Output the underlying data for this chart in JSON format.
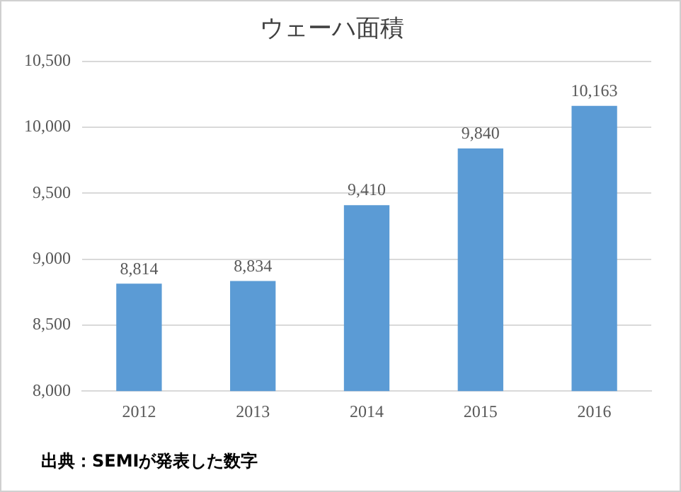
{
  "chart_data": {
    "type": "bar",
    "title": "ウェーハ面積",
    "categories": [
      "2012",
      "2013",
      "2014",
      "2015",
      "2016"
    ],
    "values": [
      8814,
      8834,
      9410,
      9840,
      10163
    ],
    "value_labels": [
      "8,814",
      "8,834",
      "9,410",
      "9,840",
      "10,163"
    ],
    "color": "#5b9bd5",
    "ylim": [
      8000,
      10500
    ],
    "yticks": [
      {
        "value": 8000,
        "label": "8,000"
      },
      {
        "value": 8500,
        "label": "8,500"
      },
      {
        "value": 9000,
        "label": "9,000"
      },
      {
        "value": 9500,
        "label": "9,500"
      },
      {
        "value": 10000,
        "label": "10,000"
      },
      {
        "value": 10500,
        "label": "10,500"
      }
    ],
    "grid": "y",
    "annotations": [
      "出典：SEMIが発表した数字"
    ]
  }
}
